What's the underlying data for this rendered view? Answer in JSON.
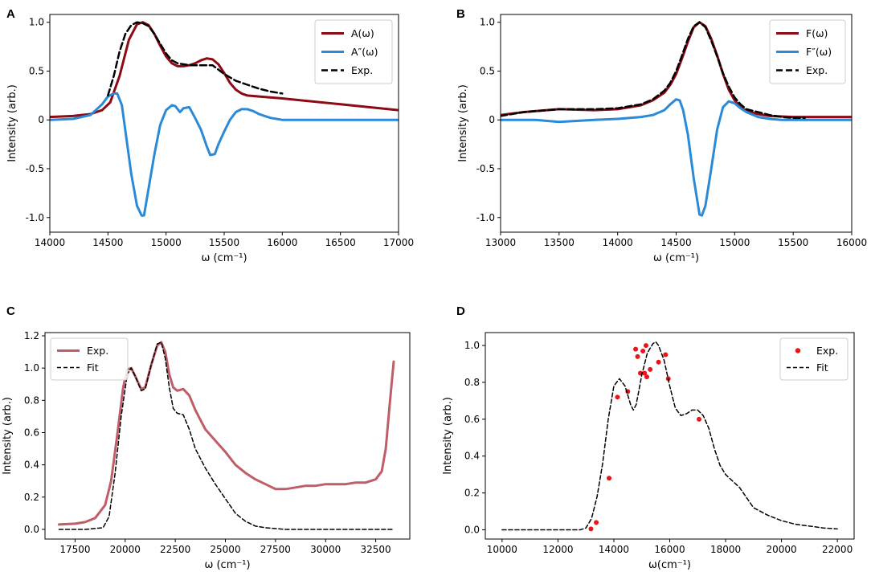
{
  "chart_data": [
    {
      "panel": "A",
      "type": "line",
      "xlabel": "ω (cm⁻¹)",
      "ylabel": "Intensity (arb.)",
      "xlim": [
        14000,
        17000
      ],
      "ylim": [
        -1.15,
        1.08
      ],
      "xticks": [
        14000,
        14500,
        15000,
        15500,
        16000,
        16500,
        17000
      ],
      "yticks": [
        -1.0,
        -0.5,
        0,
        0.5,
        1.0
      ],
      "ytick_labels": [
        "-1.0",
        "-0.5",
        "0",
        "0.5",
        "1.0"
      ],
      "legend_position": "top-right",
      "series": [
        {
          "name": "A(ω)",
          "color": "#8b0a14",
          "style": "solid",
          "width": 3,
          "x": [
            14000,
            14200,
            14350,
            14450,
            14520,
            14600,
            14680,
            14750,
            14800,
            14850,
            14900,
            14950,
            15000,
            15050,
            15100,
            15150,
            15200,
            15250,
            15300,
            15350,
            15400,
            15450,
            15500,
            15550,
            15600,
            15650,
            15700,
            15800,
            16000,
            16500,
            17000
          ],
          "y": [
            0.03,
            0.04,
            0.06,
            0.1,
            0.18,
            0.45,
            0.82,
            0.98,
            1.0,
            0.97,
            0.88,
            0.76,
            0.65,
            0.58,
            0.55,
            0.55,
            0.56,
            0.58,
            0.61,
            0.63,
            0.62,
            0.57,
            0.48,
            0.38,
            0.31,
            0.27,
            0.25,
            0.24,
            0.22,
            0.16,
            0.1
          ]
        },
        {
          "name": "A″(ω)",
          "color": "#2a8ad8",
          "style": "solid",
          "width": 3,
          "x": [
            14000,
            14200,
            14350,
            14450,
            14500,
            14550,
            14580,
            14620,
            14660,
            14700,
            14750,
            14790,
            14810,
            14850,
            14900,
            14950,
            15000,
            15050,
            15080,
            15120,
            15150,
            15200,
            15250,
            15300,
            15350,
            15380,
            15420,
            15450,
            15500,
            15550,
            15600,
            15650,
            15700,
            15750,
            15800,
            15850,
            15900,
            16000,
            16500,
            17000
          ],
          "y": [
            0.0,
            0.01,
            0.05,
            0.16,
            0.24,
            0.27,
            0.27,
            0.15,
            -0.2,
            -0.55,
            -0.88,
            -0.98,
            -0.98,
            -0.7,
            -0.35,
            -0.05,
            0.1,
            0.15,
            0.14,
            0.08,
            0.12,
            0.13,
            0.02,
            -0.1,
            -0.27,
            -0.36,
            -0.35,
            -0.25,
            -0.12,
            0.0,
            0.08,
            0.11,
            0.11,
            0.09,
            0.06,
            0.04,
            0.02,
            0.0,
            0.0,
            0.0
          ]
        },
        {
          "name": "Exp.",
          "color": "#000000",
          "style": "dashed",
          "width": 2.5,
          "x": [
            14500,
            14550,
            14600,
            14650,
            14700,
            14750,
            14800,
            14850,
            14900,
            14950,
            15000,
            15050,
            15100,
            15150,
            15200,
            15300,
            15400,
            15500,
            15600,
            15700,
            15800,
            15900,
            16000
          ],
          "y": [
            0.25,
            0.45,
            0.7,
            0.88,
            0.97,
            1.0,
            0.99,
            0.96,
            0.88,
            0.78,
            0.68,
            0.61,
            0.58,
            0.57,
            0.56,
            0.56,
            0.56,
            0.47,
            0.4,
            0.36,
            0.32,
            0.29,
            0.27
          ]
        }
      ]
    },
    {
      "panel": "B",
      "type": "line",
      "xlabel": "ω (cm⁻¹)",
      "ylabel": "Intensity (arb.)",
      "xlim": [
        13000,
        16000
      ],
      "ylim": [
        -1.15,
        1.08
      ],
      "xticks": [
        13000,
        13500,
        14000,
        14500,
        15000,
        15500,
        16000
      ],
      "yticks": [
        -1.0,
        -0.5,
        0,
        0.5,
        1.0
      ],
      "ytick_labels": [
        "-1.0",
        "-0.5",
        "0",
        "0.5",
        "1.0"
      ],
      "legend_position": "top-right",
      "series": [
        {
          "name": "F(ω)",
          "color": "#8b0a14",
          "style": "solid",
          "width": 3,
          "x": [
            13000,
            13200,
            13500,
            13800,
            14000,
            14200,
            14300,
            14400,
            14450,
            14500,
            14550,
            14600,
            14650,
            14700,
            14750,
            14800,
            14850,
            14900,
            14950,
            15000,
            15050,
            15100,
            15200,
            15300,
            15500,
            16000
          ],
          "y": [
            0.05,
            0.08,
            0.11,
            0.1,
            0.11,
            0.15,
            0.2,
            0.28,
            0.36,
            0.47,
            0.63,
            0.8,
            0.95,
            1.0,
            0.96,
            0.83,
            0.66,
            0.47,
            0.31,
            0.2,
            0.13,
            0.09,
            0.06,
            0.04,
            0.03,
            0.03
          ]
        },
        {
          "name": "F″(ω)",
          "color": "#2a8ad8",
          "style": "solid",
          "width": 3,
          "x": [
            13000,
            13300,
            13500,
            13800,
            14000,
            14200,
            14300,
            14400,
            14450,
            14500,
            14530,
            14560,
            14600,
            14650,
            14700,
            14720,
            14750,
            14800,
            14850,
            14900,
            14950,
            15000,
            15050,
            15100,
            15200,
            15300,
            15400,
            16000
          ],
          "y": [
            0.0,
            0.0,
            -0.02,
            0.0,
            0.01,
            0.03,
            0.05,
            0.1,
            0.16,
            0.21,
            0.2,
            0.1,
            -0.15,
            -0.6,
            -0.97,
            -0.98,
            -0.88,
            -0.5,
            -0.1,
            0.13,
            0.19,
            0.17,
            0.12,
            0.08,
            0.03,
            0.01,
            0.0,
            0.0
          ]
        },
        {
          "name": "Exp.",
          "color": "#000000",
          "style": "dashed",
          "width": 2.5,
          "x": [
            13000,
            13200,
            13500,
            13800,
            14000,
            14200,
            14300,
            14400,
            14450,
            14500,
            14550,
            14600,
            14650,
            14700,
            14750,
            14800,
            14850,
            14900,
            14950,
            15000,
            15050,
            15100,
            15200,
            15300,
            15400,
            15500,
            15600
          ],
          "y": [
            0.04,
            0.08,
            0.11,
            0.11,
            0.12,
            0.16,
            0.21,
            0.3,
            0.38,
            0.5,
            0.66,
            0.83,
            0.96,
            1.0,
            0.95,
            0.81,
            0.65,
            0.48,
            0.34,
            0.23,
            0.16,
            0.11,
            0.08,
            0.05,
            0.03,
            0.02,
            0.02
          ]
        }
      ]
    },
    {
      "panel": "C",
      "type": "line",
      "xlabel": "ω (cm⁻¹)",
      "ylabel": "Intensity (arb.)",
      "xlim": [
        16000,
        34200
      ],
      "ylim": [
        -0.06,
        1.22
      ],
      "xticks": [
        17500,
        20000,
        22500,
        25000,
        27500,
        30000,
        32500
      ],
      "yticks": [
        0.0,
        0.2,
        0.4,
        0.6,
        0.8,
        1.0,
        1.2
      ],
      "ytick_labels": [
        "0.0",
        "0.2",
        "0.4",
        "0.6",
        "0.8",
        "1.0",
        "1.2"
      ],
      "legend_position": "top-left",
      "series": [
        {
          "name": "Exp.",
          "color": "#bf5d68",
          "style": "solid",
          "width": 3,
          "x": [
            16700,
            17500,
            18000,
            18500,
            19000,
            19300,
            19600,
            19900,
            20100,
            20300,
            20500,
            20800,
            21000,
            21300,
            21600,
            21800,
            22000,
            22200,
            22400,
            22600,
            22900,
            23200,
            23500,
            24000,
            24500,
            25000,
            25500,
            26000,
            26500,
            27000,
            27500,
            28000,
            28500,
            29000,
            29500,
            30000,
            30500,
            31000,
            31500,
            32000,
            32500,
            32800,
            33000,
            33200,
            33400
          ],
          "y": [
            0.03,
            0.035,
            0.045,
            0.07,
            0.15,
            0.3,
            0.58,
            0.88,
            0.99,
            1.0,
            0.95,
            0.87,
            0.88,
            1.02,
            1.14,
            1.16,
            1.1,
            0.96,
            0.88,
            0.86,
            0.87,
            0.83,
            0.74,
            0.62,
            0.55,
            0.48,
            0.4,
            0.35,
            0.31,
            0.28,
            0.25,
            0.25,
            0.26,
            0.27,
            0.27,
            0.28,
            0.28,
            0.28,
            0.29,
            0.29,
            0.31,
            0.36,
            0.5,
            0.78,
            1.04
          ]
        },
        {
          "name": "Fit",
          "color": "#000000",
          "style": "dashed",
          "width": 1.5,
          "x": [
            16700,
            18000,
            18900,
            19200,
            19500,
            19800,
            20100,
            20300,
            20500,
            20800,
            21000,
            21300,
            21600,
            21800,
            22000,
            22200,
            22400,
            22600,
            22900,
            23200,
            23500,
            24000,
            24500,
            25000,
            25500,
            26000,
            26500,
            27000,
            28000,
            30000,
            32000,
            33400
          ],
          "y": [
            0.0,
            0.0,
            0.01,
            0.08,
            0.35,
            0.7,
            0.96,
            1.0,
            0.95,
            0.86,
            0.87,
            1.02,
            1.15,
            1.16,
            1.06,
            0.88,
            0.75,
            0.72,
            0.71,
            0.62,
            0.5,
            0.38,
            0.28,
            0.19,
            0.1,
            0.05,
            0.02,
            0.01,
            0.0,
            0.0,
            0.0,
            0.0
          ]
        }
      ]
    },
    {
      "panel": "D",
      "type": "scatter",
      "xlabel": "ω(cm⁻¹)",
      "ylabel": "Intensity (arb.)",
      "xlim": [
        9400,
        22600
      ],
      "ylim": [
        -0.05,
        1.07
      ],
      "xticks": [
        10000,
        12000,
        14000,
        16000,
        18000,
        20000,
        22000
      ],
      "yticks": [
        0.0,
        0.2,
        0.4,
        0.6,
        0.8,
        1.0
      ],
      "ytick_labels": [
        "0.0",
        "0.2",
        "0.4",
        "0.6",
        "0.8",
        "1.0"
      ],
      "legend_position": "top-right",
      "series": [
        {
          "name": "Exp.",
          "color": "#e8151a",
          "style": "markers",
          "x": [
            13180,
            13370,
            13830,
            14130,
            14500,
            14780,
            14850,
            14950,
            15040,
            15100,
            15150,
            15180,
            15300,
            15600,
            15850,
            15950,
            17050
          ],
          "y": [
            0.005,
            0.04,
            0.28,
            0.72,
            0.75,
            0.98,
            0.94,
            0.85,
            0.97,
            0.85,
            1.0,
            0.83,
            0.87,
            0.91,
            0.95,
            0.82,
            0.6
          ]
        },
        {
          "name": "Fit",
          "color": "#000000",
          "style": "dashed",
          "width": 1.5,
          "x": [
            10000,
            12000,
            12800,
            13000,
            13200,
            13400,
            13600,
            13800,
            14000,
            14200,
            14400,
            14600,
            14700,
            14800,
            14900,
            15000,
            15200,
            15400,
            15500,
            15600,
            15800,
            16000,
            16200,
            16400,
            16600,
            16800,
            17000,
            17200,
            17400,
            17600,
            17800,
            18000,
            18500,
            19000,
            19500,
            20000,
            20500,
            21000,
            21500,
            22000
          ],
          "y": [
            0.0,
            0.0,
            0.0,
            0.01,
            0.06,
            0.18,
            0.36,
            0.6,
            0.78,
            0.82,
            0.78,
            0.68,
            0.65,
            0.68,
            0.76,
            0.84,
            0.96,
            1.01,
            1.02,
            1.0,
            0.92,
            0.78,
            0.66,
            0.62,
            0.63,
            0.65,
            0.65,
            0.62,
            0.55,
            0.44,
            0.35,
            0.3,
            0.23,
            0.12,
            0.08,
            0.05,
            0.03,
            0.02,
            0.01,
            0.005
          ]
        }
      ]
    }
  ]
}
